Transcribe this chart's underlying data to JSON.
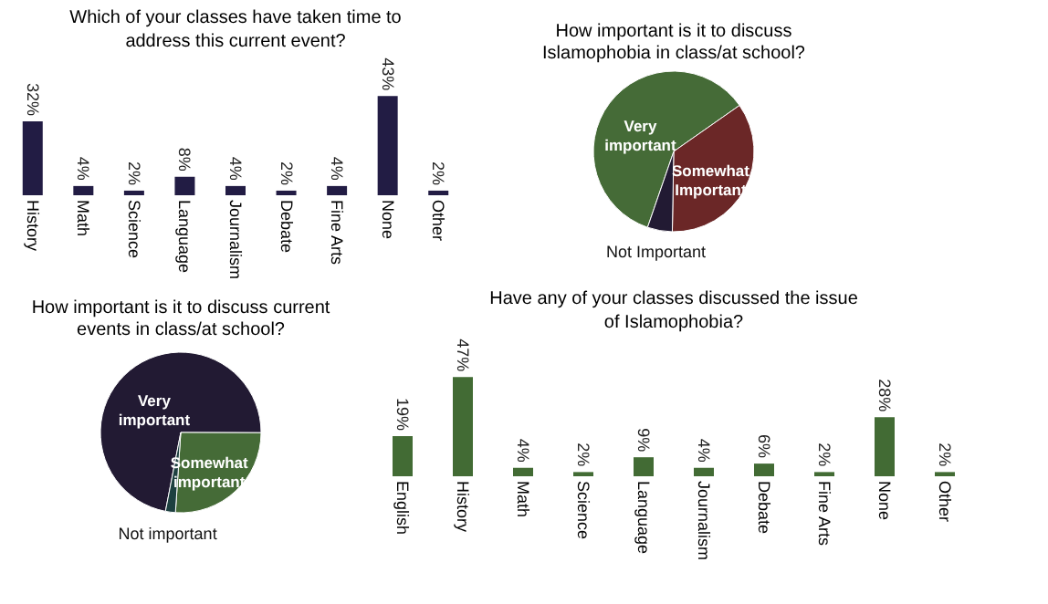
{
  "chart_data": [
    {
      "type": "bar",
      "title": "Which of your classes have taken time to address this current event?",
      "categories": [
        "History",
        "Math",
        "Science",
        "Language",
        "Journalism",
        "Debate",
        "Fine Arts",
        "None",
        "Other"
      ],
      "values": [
        32,
        4,
        2,
        8,
        4,
        2,
        4,
        43,
        2
      ],
      "value_labels": [
        "32%",
        "4%",
        "2%",
        "8%",
        "4%",
        "2%",
        "4%",
        "43%",
        "2%"
      ],
      "color": "#221c44",
      "grid": false
    },
    {
      "type": "pie",
      "title": "How important is it to discuss Islamophobia in class/at school?",
      "categories": [
        "Very important",
        "Somewhat Important",
        "Not Important"
      ],
      "values": [
        60,
        35,
        5
      ],
      "colors": [
        "#456b37",
        "#6b2727",
        "#221a33"
      ],
      "legend": false
    },
    {
      "type": "pie",
      "title": "How important is it to discuss current events in class/at school?",
      "categories": [
        "Very important",
        "Somewhat important",
        "Not important"
      ],
      "values": [
        72,
        26,
        2
      ],
      "colors": [
        "#221a33",
        "#456b37",
        "#1d4040"
      ],
      "legend": false
    },
    {
      "type": "bar",
      "title": "Have any of your classes discussed the issue of Islamophobia?",
      "categories": [
        "English",
        "History",
        "Math",
        "Science",
        "Language",
        "Journalism",
        "Debate",
        "Fine Arts",
        "None",
        "Other"
      ],
      "values": [
        19,
        47,
        4,
        2,
        9,
        4,
        6,
        2,
        28,
        2
      ],
      "value_labels": [
        "19%",
        "47%",
        "4%",
        "2%",
        "9%",
        "4%",
        "6%",
        "2%",
        "28%",
        "2%"
      ],
      "color": "#426b34",
      "grid": false
    }
  ]
}
